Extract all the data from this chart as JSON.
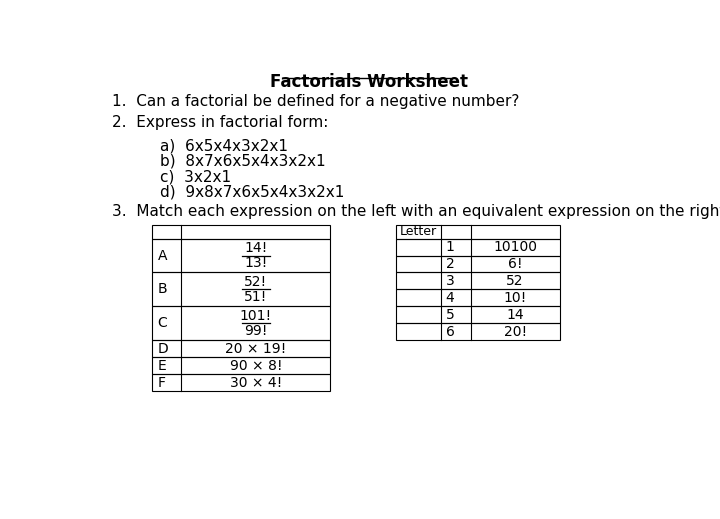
{
  "title": "Factorials Worksheet",
  "q1": "Can a factorial be defined for a negative number?",
  "q2_label": "Express in factorial form:",
  "q2_items": [
    "a)  6x5x4x3x2x1",
    "b)  8x7x6x5x4x3x2x1",
    "c)  3x2x1",
    "d)  9x8x7x6x5x4x3x2x1"
  ],
  "q3_label": "Match each expression on the left with an equivalent expression on the right.",
  "left_labels": [
    "A",
    "B",
    "C",
    "D",
    "E",
    "F"
  ],
  "left_numerators": [
    "14!",
    "52!",
    "101!",
    "",
    "",
    ""
  ],
  "left_denominators": [
    "13!",
    "51!",
    "99!",
    "",
    "",
    ""
  ],
  "left_single": [
    "",
    "",
    "",
    "20 × 19!",
    "90 × 8!",
    "30 × 4!"
  ],
  "right_numbers": [
    "1",
    "2",
    "3",
    "4",
    "5",
    "6"
  ],
  "right_exprs": [
    "10100",
    "6!",
    "52",
    "10!",
    "14",
    "20!"
  ],
  "bg_color": "#ffffff",
  "text_color": "#000000",
  "font_size": 11,
  "title_font_size": 12
}
